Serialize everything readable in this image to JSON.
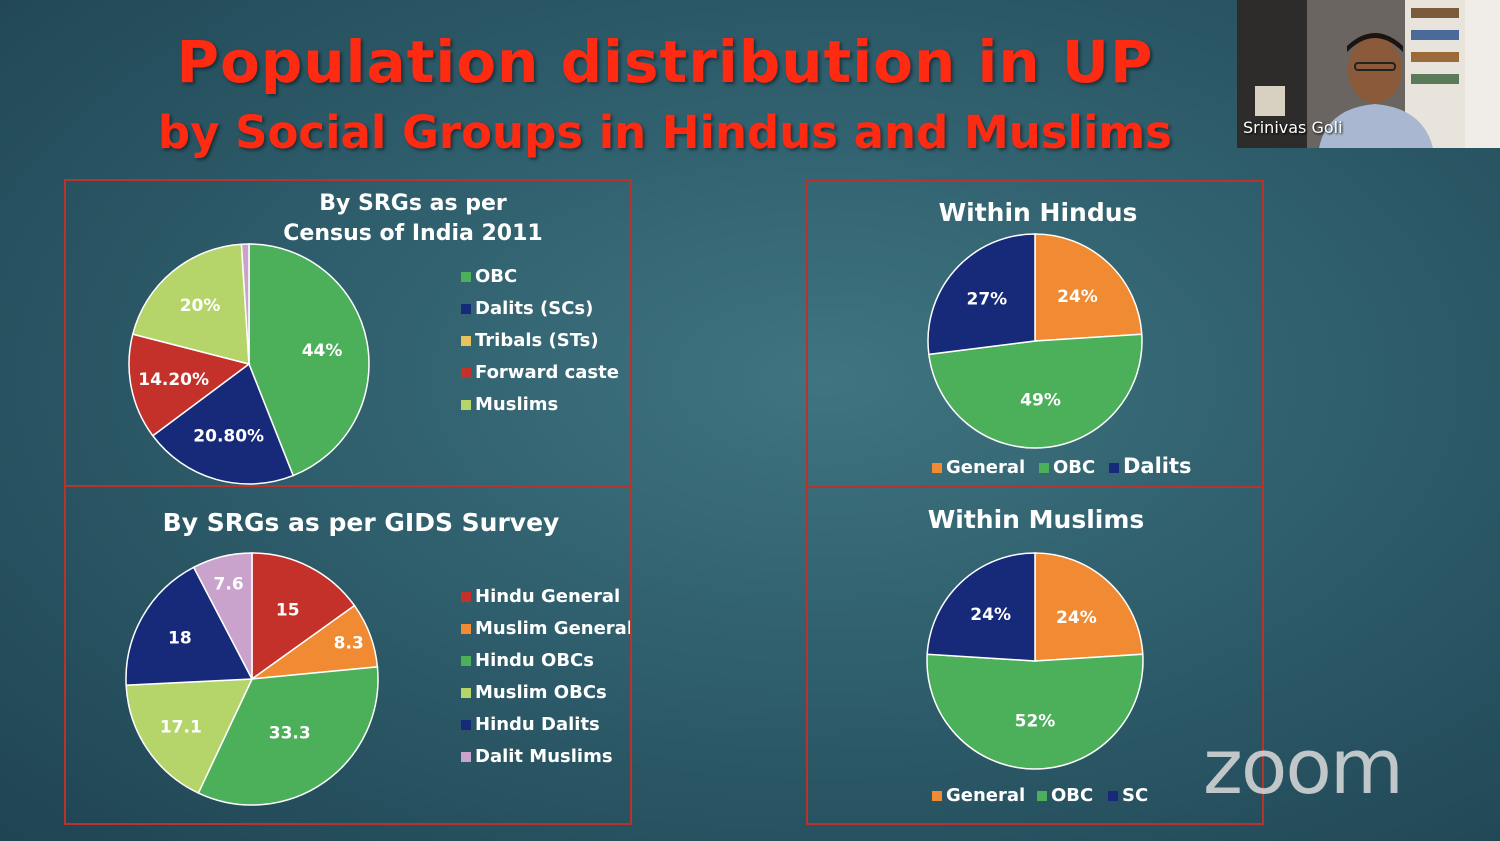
{
  "slide": {
    "title": "Population distribution in UP",
    "subtitle": "by Social Groups in Hindus and Muslims"
  },
  "video": {
    "participant_name": "Srinivas Goli"
  },
  "app": {
    "watermark": "zoom"
  },
  "colors": {
    "title": "#ff2a12",
    "panel_border": "#b8332a",
    "OBC": "#4caf5a",
    "Dalits": "#172a7a",
    "Tribals": "#e6c35c",
    "Forward": "#c4312a",
    "Muslims": "#b5d56a",
    "General": "#f08a33",
    "DalitMuslims": "#c9a3cb"
  },
  "chart_data": [
    {
      "type": "pie",
      "title": "By SRGs as per Census of India 2011",
      "title_lines": [
        "By SRGs as per",
        "Census of India 2011"
      ],
      "legend": [
        "OBC",
        "Dalits (SCs)",
        "Tribals (STs)",
        "Forward caste",
        "Muslims"
      ],
      "slices": [
        {
          "name": "OBC",
          "value": 44,
          "label": "44%",
          "color": "#4caf5a"
        },
        {
          "name": "Dalits (SCs)",
          "value": 20.8,
          "label": "20.80%",
          "color": "#172a7a"
        },
        {
          "name": "Forward caste",
          "value": 14.2,
          "label": "14.20%",
          "color": "#c4312a"
        },
        {
          "name": "Muslims",
          "value": 20,
          "label": "20%",
          "color": "#b5d56a"
        },
        {
          "name": "Tribals (STs)",
          "value": 1,
          "label": "",
          "color": "#c9a3cb"
        }
      ],
      "legend_colors": [
        "#4caf5a",
        "#172a7a",
        "#e6c35c",
        "#c4312a",
        "#b5d56a"
      ]
    },
    {
      "type": "pie",
      "title": "By SRGs as per GIDS Survey",
      "legend": [
        "Hindu General",
        "Muslim General",
        "Hindu OBCs",
        "Muslim OBCs",
        "Hindu Dalits",
        "Dalit Muslims"
      ],
      "legend_colors": [
        "#c4312a",
        "#f08a33",
        "#4caf5a",
        "#b5d56a",
        "#172a7a",
        "#c9a3cb"
      ],
      "slices": [
        {
          "name": "Hindu General",
          "value": 15,
          "label": "15",
          "color": "#c4312a"
        },
        {
          "name": "Muslim General",
          "value": 8.3,
          "label": "8.3",
          "color": "#f08a33"
        },
        {
          "name": "Hindu OBCs",
          "value": 33.3,
          "label": "33.3",
          "color": "#4caf5a"
        },
        {
          "name": "Muslim OBCs",
          "value": 17.1,
          "label": "17.1",
          "color": "#b5d56a"
        },
        {
          "name": "Hindu Dalits",
          "value": 18,
          "label": "18",
          "color": "#172a7a"
        },
        {
          "name": "Dalit Muslims",
          "value": 7.6,
          "label": "7.6",
          "color": "#c9a3cb"
        }
      ]
    },
    {
      "type": "pie",
      "title": "Within Hindus",
      "legend": [
        "General",
        "OBC",
        "Dalits"
      ],
      "legend_colors": [
        "#f08a33",
        "#4caf5a",
        "#172a7a"
      ],
      "slices": [
        {
          "name": "General",
          "value": 24,
          "label": "24%",
          "color": "#f08a33"
        },
        {
          "name": "OBC",
          "value": 49,
          "label": "49%",
          "color": "#4caf5a"
        },
        {
          "name": "Dalits",
          "value": 27,
          "label": "27%",
          "color": "#172a7a"
        }
      ]
    },
    {
      "type": "pie",
      "title": "Within Muslims",
      "legend": [
        "General",
        "OBC",
        "SC"
      ],
      "legend_colors": [
        "#f08a33",
        "#4caf5a",
        "#172a7a"
      ],
      "slices": [
        {
          "name": "General",
          "value": 24,
          "label": "24%",
          "color": "#f08a33"
        },
        {
          "name": "OBC",
          "value": 52,
          "label": "52%",
          "color": "#4caf5a"
        },
        {
          "name": "SC",
          "value": 24,
          "label": "24%",
          "color": "#172a7a"
        }
      ]
    }
  ]
}
